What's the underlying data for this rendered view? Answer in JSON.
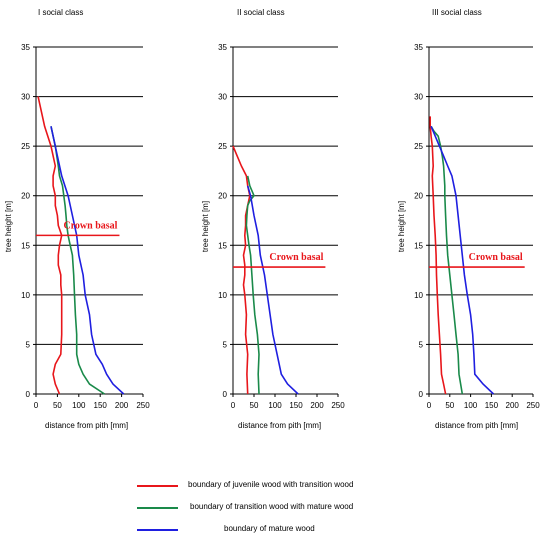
{
  "chart_data": [
    {
      "type": "line",
      "title": "I social class",
      "xlabel": "distance from pith [mm]",
      "ylabel": "tree height [m]",
      "xlim": [
        0,
        250
      ],
      "ylim": [
        0,
        35
      ],
      "xticks": [
        0,
        50,
        100,
        150,
        200,
        250
      ],
      "yticks": [
        0,
        5,
        10,
        15,
        20,
        25,
        30,
        35
      ],
      "grid": "horizontal",
      "series": [
        {
          "key": "juvenile",
          "x": [
            55,
            45,
            40,
            45,
            58,
            60,
            60,
            60,
            60,
            58,
            58,
            52,
            52,
            55,
            60,
            52,
            50,
            45,
            45,
            40,
            40,
            45,
            35,
            20,
            5
          ],
          "y": [
            0,
            1,
            2,
            3,
            4,
            6,
            8,
            9,
            10,
            11,
            12,
            13,
            14,
            15,
            16,
            17,
            18,
            19,
            20,
            21,
            22,
            23,
            25,
            27,
            30
          ]
        },
        {
          "key": "transition",
          "x": [
            160,
            125,
            110,
            100,
            95,
            95,
            92,
            90,
            88,
            85,
            80,
            75,
            72,
            70,
            68,
            65,
            62,
            55,
            52,
            45,
            35
          ],
          "y": [
            0,
            1,
            2,
            3,
            4,
            6,
            8,
            10,
            12,
            14,
            15,
            16,
            17,
            18,
            19,
            20,
            21,
            22,
            23,
            25,
            27
          ]
        },
        {
          "key": "mature",
          "x": [
            205,
            180,
            165,
            155,
            140,
            130,
            125,
            115,
            110,
            100,
            95,
            85,
            75,
            60,
            50,
            35
          ],
          "y": [
            0,
            1,
            2,
            3,
            4,
            6,
            8,
            10,
            12,
            14,
            16,
            18,
            20,
            22,
            24,
            27
          ]
        }
      ],
      "annotations": [
        {
          "text": "Crown basal",
          "y": 16,
          "x_from": 0,
          "x_to": 195
        }
      ]
    },
    {
      "type": "line",
      "title": "II social class",
      "xlabel": "distance from pith [mm]",
      "ylabel": "tree height [m]",
      "xlim": [
        0,
        250
      ],
      "ylim": [
        0,
        35
      ],
      "xticks": [
        0,
        50,
        100,
        150,
        200,
        250
      ],
      "yticks": [
        0,
        5,
        10,
        15,
        20,
        25,
        30,
        35
      ],
      "grid": "horizontal",
      "series": [
        {
          "key": "juvenile",
          "x": [
            35,
            33,
            35,
            30,
            32,
            28,
            25,
            28,
            28,
            25,
            30,
            28,
            30,
            30,
            35,
            40,
            35,
            32,
            20,
            10,
            0
          ],
          "y": [
            0,
            2,
            4,
            6,
            8,
            10,
            11,
            12,
            13,
            14,
            15,
            16,
            17,
            18,
            19,
            20,
            21,
            22,
            23,
            24,
            25
          ]
        },
        {
          "key": "transition",
          "x": [
            62,
            60,
            62,
            58,
            52,
            48,
            45,
            42,
            38,
            35,
            32,
            33,
            35,
            40,
            50,
            40,
            35
          ],
          "y": [
            0,
            2,
            4,
            6,
            8,
            10,
            12,
            14,
            15,
            16,
            17,
            18,
            19,
            19.5,
            20,
            21,
            22
          ]
        },
        {
          "key": "mature",
          "x": [
            155,
            130,
            115,
            105,
            95,
            85,
            75,
            65,
            60,
            50,
            42,
            35
          ],
          "y": [
            0,
            1,
            2,
            4,
            6,
            9,
            12,
            14,
            16,
            18,
            20,
            21
          ]
        }
      ],
      "annotations": [
        {
          "text": "Crown basal",
          "y": 12.8,
          "x_from": 0,
          "x_to": 220
        }
      ]
    },
    {
      "type": "line",
      "title": "III social class",
      "xlabel": "distance from pith [mm]",
      "ylabel": "tree height [m]",
      "xlim": [
        0,
        250
      ],
      "ylim": [
        0,
        35
      ],
      "xticks": [
        0,
        50,
        100,
        150,
        200,
        250
      ],
      "yticks": [
        0,
        5,
        10,
        15,
        20,
        25,
        30,
        35
      ],
      "grid": "horizontal",
      "series": [
        {
          "key": "juvenile",
          "x": [
            40,
            35,
            30,
            28,
            25,
            22,
            20,
            18,
            17,
            15,
            12,
            10,
            8,
            10,
            8,
            5,
            3,
            3
          ],
          "y": [
            0,
            1,
            2,
            4,
            6,
            8,
            10,
            12,
            14,
            16,
            18,
            20,
            22,
            23,
            25,
            26,
            27,
            28
          ]
        },
        {
          "key": "transition",
          "x": [
            80,
            72,
            70,
            65,
            60,
            55,
            50,
            45,
            42,
            40,
            38,
            38,
            35,
            32,
            28,
            22,
            12,
            5
          ],
          "y": [
            0,
            2,
            4,
            6,
            8,
            10,
            12,
            14,
            16,
            18,
            20,
            21,
            23,
            24,
            25,
            26,
            26.5,
            27
          ]
        },
        {
          "key": "mature",
          "x": [
            155,
            130,
            110,
            108,
            105,
            100,
            92,
            85,
            80,
            75,
            70,
            65,
            55,
            45,
            35,
            25,
            10,
            5
          ],
          "y": [
            0,
            1,
            2,
            4,
            6,
            8,
            10,
            12,
            14,
            16,
            18,
            20,
            22,
            23,
            24,
            25,
            26.5,
            27
          ]
        }
      ],
      "annotations": [
        {
          "text": "Crown basal",
          "y": 12.8,
          "x_from": 0,
          "x_to": 230
        }
      ]
    }
  ],
  "series_colors": {
    "juvenile": "#e8161b",
    "transition": "#1a8a4a",
    "mature": "#1f1fe0"
  },
  "axis_color": "#000000",
  "grid_color": "#000000",
  "legend": [
    {
      "key": "juvenile",
      "label": "boundary of juvenile wood with transition wood"
    },
    {
      "key": "transition",
      "label": "boundary of transition wood with mature wood"
    },
    {
      "key": "mature",
      "label": "boundary of mature wood"
    }
  ]
}
